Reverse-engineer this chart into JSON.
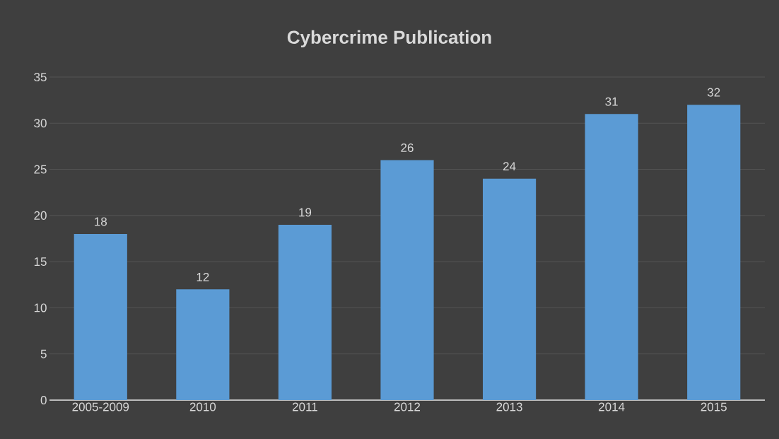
{
  "chart_data": {
    "type": "bar",
    "title": "Cybercrime Publication",
    "categories": [
      "2005-2009",
      "2010",
      "2011",
      "2012",
      "2013",
      "2014",
      "2015"
    ],
    "values": [
      18,
      12,
      19,
      26,
      24,
      31,
      32
    ],
    "color": "#5b9bd5",
    "ylim": [
      0,
      35
    ],
    "yticks": [
      0,
      5,
      10,
      15,
      20,
      25,
      30,
      35
    ],
    "grid": "y",
    "data_labels": true
  }
}
